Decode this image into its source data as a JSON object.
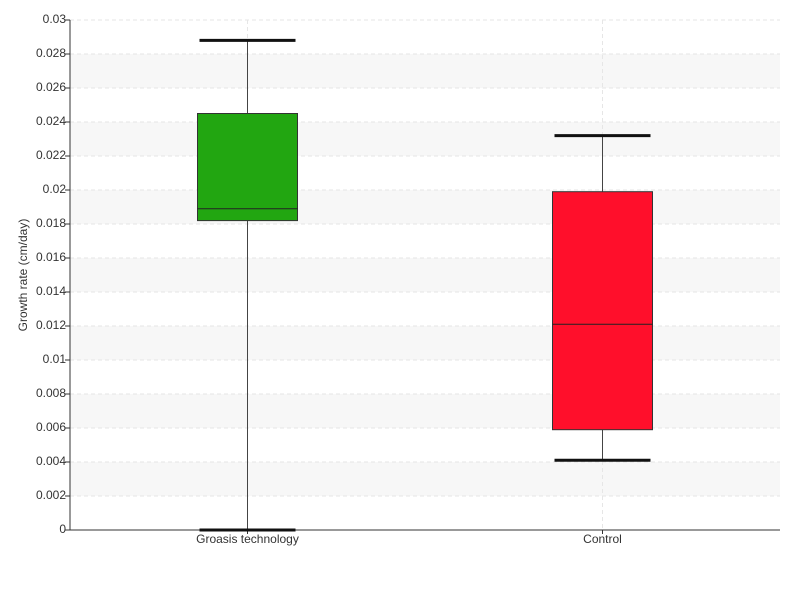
{
  "chart_data": {
    "type": "box",
    "y_label": "Growth rate (cm/day)",
    "categories": [
      "Groasis technology",
      "Control"
    ],
    "boxes": [
      {
        "min": 0,
        "q1": 0.0182,
        "median": 0.0189,
        "q3": 0.0245,
        "max": 0.0288,
        "color": "#22a611"
      },
      {
        "min": 0.0041,
        "q1": 0.0059,
        "median": 0.0121,
        "q3": 0.0199,
        "max": 0.0232,
        "color": "#ff0f2b"
      }
    ],
    "ylim": [
      0,
      0.03
    ],
    "yticks": [
      0,
      0.002,
      0.004,
      0.006,
      0.008,
      0.01,
      0.012,
      0.014,
      0.016,
      0.018,
      0.02,
      0.022,
      0.024,
      0.026,
      0.028,
      0.03
    ],
    "grid": true
  }
}
